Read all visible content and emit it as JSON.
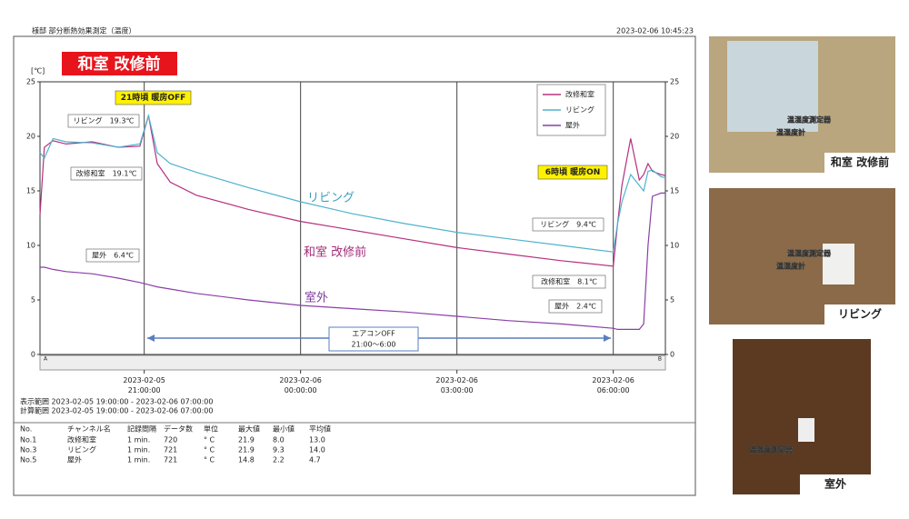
{
  "header": {
    "title": "様邸 部分断熱効果測定（温度）",
    "timestamp": "2023-02-06 10:45:23"
  },
  "chart_data": {
    "type": "line",
    "title": "和室 改修前",
    "unit": "[℃]",
    "x": [
      "2023-02-05 19:00:00",
      "2023-02-05 19:05:00",
      "2023-02-05 19:15:00",
      "2023-02-05 19:30:00",
      "2023-02-05 20:00:00",
      "2023-02-05 20:30:00",
      "2023-02-05 20:55:00",
      "2023-02-05 21:05:00",
      "2023-02-05 21:15:00",
      "2023-02-05 21:30:00",
      "2023-02-05 22:00:00",
      "2023-02-05 23:00:00",
      "2023-02-06 00:00:00",
      "2023-02-06 01:00:00",
      "2023-02-06 02:00:00",
      "2023-02-06 03:00:00",
      "2023-02-06 04:00:00",
      "2023-02-06 05:00:00",
      "2023-02-06 06:00:00",
      "2023-02-06 06:05:00",
      "2023-02-06 06:10:00",
      "2023-02-06 06:20:00",
      "2023-02-06 06:30:00",
      "2023-02-06 06:35:00",
      "2023-02-06 06:40:00",
      "2023-02-06 06:45:00",
      "2023-02-06 06:55:00",
      "2023-02-06 07:00:00"
    ],
    "series": [
      {
        "name": "改修和室",
        "color": "#b5307f",
        "values": [
          12.8,
          19.0,
          19.6,
          19.3,
          19.5,
          19.0,
          19.1,
          21.9,
          17.5,
          15.8,
          14.6,
          13.3,
          12.2,
          11.4,
          10.6,
          9.8,
          9.2,
          8.6,
          8.1,
          12.0,
          15.5,
          19.8,
          16.0,
          16.5,
          17.5,
          16.8,
          16.5,
          16.4
        ]
      },
      {
        "name": "リビング",
        "color": "#4fb3cc",
        "values": [
          18.5,
          18.0,
          19.8,
          19.5,
          19.4,
          19.0,
          19.3,
          21.9,
          18.5,
          17.5,
          16.7,
          15.3,
          14.0,
          12.9,
          12.0,
          11.2,
          10.6,
          10.0,
          9.4,
          12.0,
          14.0,
          16.5,
          15.5,
          15.0,
          16.8,
          16.9,
          16.3,
          16.2
        ]
      },
      {
        "name": "屋外",
        "color": "#8a3fa6",
        "values": [
          8.0,
          8.0,
          7.8,
          7.6,
          7.4,
          7.0,
          6.6,
          6.4,
          6.2,
          6.0,
          5.6,
          5.0,
          4.5,
          4.2,
          3.9,
          3.5,
          3.1,
          2.8,
          2.4,
          2.3,
          2.3,
          2.3,
          2.3,
          2.8,
          10.0,
          14.5,
          14.8,
          14.8
        ]
      }
    ],
    "xlim": [
      "2023-02-05 19:00:00",
      "2023-02-06 07:00:00"
    ],
    "xticks": [
      "2023-02-05 21:00:00",
      "2023-02-06 00:00:00",
      "2023-02-06 03:00:00",
      "2023-02-06 06:00:00"
    ],
    "ylim": [
      0,
      25
    ],
    "yticks": [
      0,
      5,
      10,
      15,
      20,
      25
    ],
    "grid": true,
    "annotations": [
      "21時頃 暖房OFF",
      "6時頃 暖房ON",
      "リビング　19.3℃",
      "改修和室　19.1℃",
      "屋外　6.4℃",
      "リビング　9.4℃",
      "改修和室　8.1℃",
      "屋外　2.4℃",
      "リビング",
      "和室 改修前",
      "室外",
      "エアコンOFF",
      "21:00〜6:00"
    ],
    "scrollbar": [
      "A",
      "B"
    ]
  },
  "ranges": [
    "表示範囲 2023-02-05 19:00:00 - 2023-02-06 07:00:00",
    "計算範囲 2023-02-05 19:00:00 - 2023-02-06 07:00:00"
  ],
  "table": {
    "header": [
      "No.",
      "チャンネル名",
      "記録間隔",
      "データ数",
      "単位",
      "最大値",
      "最小値",
      "平均値"
    ],
    "rows": [
      [
        "No.1",
        "改修和室",
        "1 min.",
        "720",
        "° C",
        "21.9",
        "8.0",
        "13.0"
      ],
      [
        "No.3",
        "リビング",
        "1 min.",
        "721",
        "° C",
        "21.9",
        "9.3",
        "14.0"
      ],
      [
        "No.5",
        "屋外",
        "1 min.",
        "721",
        "° C",
        "14.8",
        "2.2",
        "4.7"
      ]
    ]
  },
  "photos": [
    {
      "caption": "和室 改修前",
      "labels": [
        "温湿度測定器",
        "温湿度計"
      ]
    },
    {
      "caption": "リビング",
      "labels": [
        "温湿度測定器",
        "温湿度計"
      ]
    },
    {
      "caption": "室外",
      "labels": [
        "温湿度測定器"
      ]
    }
  ]
}
